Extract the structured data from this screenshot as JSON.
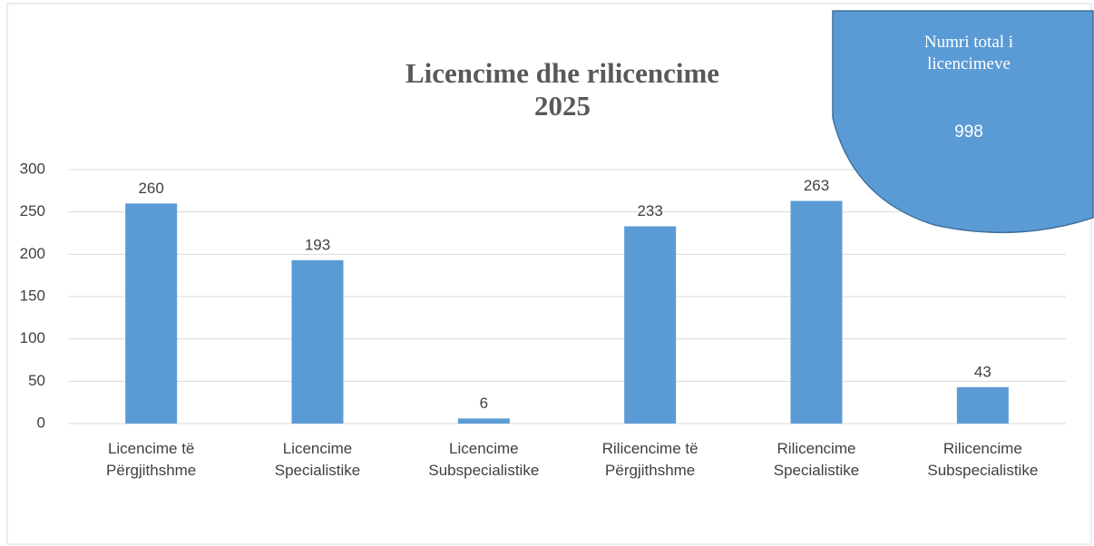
{
  "chart_data": {
    "type": "bar",
    "title": "Licencime dhe rilicencime 2025",
    "categories": [
      "Licencime të Përgjithshme",
      "Licencime Specialistike",
      "Licencime Subspecialistike",
      "Rilicencime të Përgjithshme",
      "Rilicencime Specialistike",
      "Rilicencime Subspecialistike"
    ],
    "values": [
      260,
      193,
      6,
      233,
      263,
      43
    ],
    "color": "#5b9bd5",
    "ylim": [
      0,
      300
    ],
    "yticks": [
      0,
      50,
      100,
      150,
      200,
      250,
      300
    ],
    "grid": true,
    "annotation": {
      "text": "Numri total i licencimeve",
      "value": 998
    }
  }
}
